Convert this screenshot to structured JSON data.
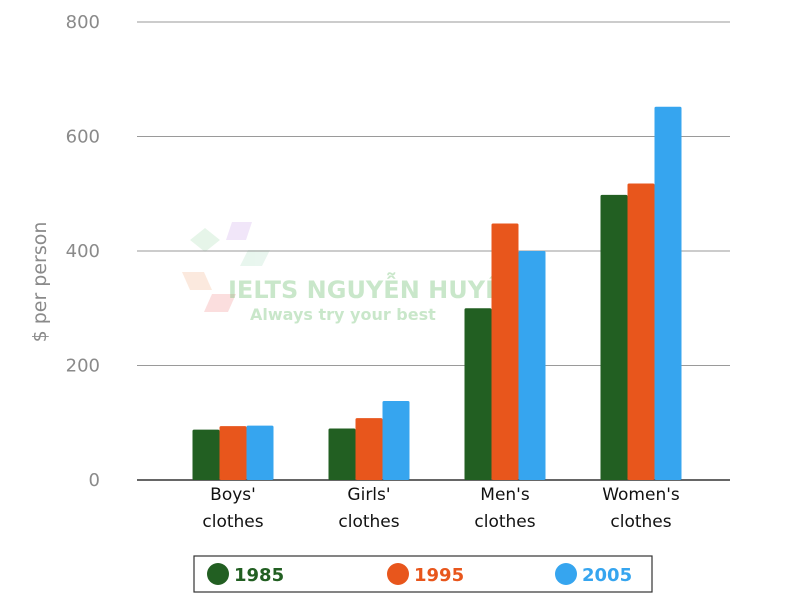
{
  "watermark": {
    "title": "IELTS NGUYỄN HUYỀN",
    "tagline": "Always try your best"
  },
  "chart_data": {
    "type": "bar",
    "title": "",
    "xlabel": "",
    "ylabel": "$ per person",
    "ylim": [
      0,
      800
    ],
    "yticks": [
      0,
      200,
      400,
      600,
      800
    ],
    "grid": true,
    "legend_position": "bottom",
    "categories": [
      [
        "Boys'",
        "clothes"
      ],
      [
        "Girls'",
        "clothes"
      ],
      [
        "Men's",
        "clothes"
      ],
      [
        "Women's",
        "clothes"
      ]
    ],
    "series": [
      {
        "name": "1985",
        "color": "#225f22",
        "values": [
          88,
          90,
          300,
          498
        ]
      },
      {
        "name": "1995",
        "color": "#e8561c",
        "values": [
          94,
          108,
          448,
          518
        ]
      },
      {
        "name": "2005",
        "color": "#36a5ef",
        "values": [
          95,
          138,
          400,
          652
        ]
      }
    ]
  }
}
